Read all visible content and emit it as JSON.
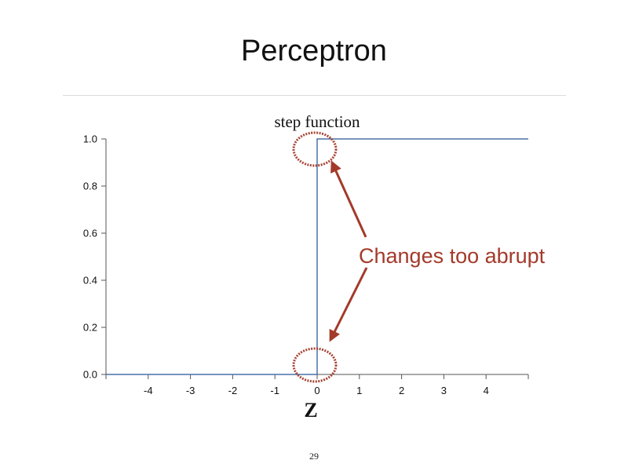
{
  "slide": {
    "title": "Perceptron",
    "page_number": "29"
  },
  "chart_data": {
    "type": "line",
    "title": "step function",
    "xlabel": "Z",
    "ylabel": "",
    "xlim": [
      -5,
      5
    ],
    "ylim": [
      0,
      1
    ],
    "x_ticks": [
      -4,
      -3,
      -2,
      -1,
      0,
      1,
      2,
      3,
      4
    ],
    "y_ticks": [
      0.0,
      0.2,
      0.4,
      0.6,
      0.8,
      1.0
    ],
    "series": [
      {
        "x": [
          -5,
          0,
          0,
          5
        ],
        "y": [
          0,
          0,
          1,
          1
        ],
        "color": "#4a72a8"
      }
    ],
    "annotation": {
      "text": "Changes too abrupt",
      "color": "#a33a2a",
      "highlight_points": [
        [
          0,
          1
        ],
        [
          0,
          0
        ]
      ]
    }
  }
}
